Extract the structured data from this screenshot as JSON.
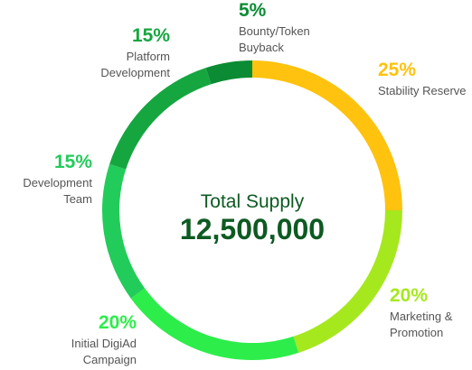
{
  "chart_data": {
    "type": "donut",
    "center_title": "Total Supply",
    "center_value": "12,500,000",
    "categories": [
      "Stability Reserve",
      "Marketing & Promotion",
      "Initial DigiAd Campaign",
      "Development Team",
      "Platform Development",
      "Bounty/Token Buyback"
    ],
    "values": [
      25,
      20,
      20,
      15,
      15,
      5
    ],
    "value_labels": [
      "25%",
      "20%",
      "20%",
      "15%",
      "15%",
      "5%"
    ],
    "colors": [
      "#ffc20e",
      "#a6e81e",
      "#2ded4a",
      "#22cc5a",
      "#16a640",
      "#0b8b33"
    ]
  }
}
